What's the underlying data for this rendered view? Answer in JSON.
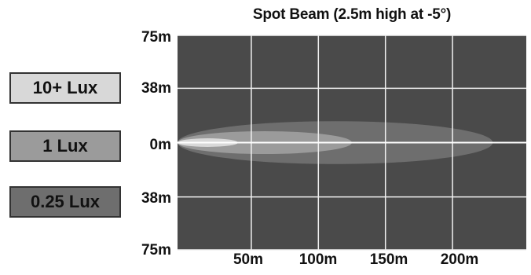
{
  "chart_data": {
    "type": "heatmap",
    "title": "Spot Beam (2.5m high at -5°)",
    "x_ticks": [
      "50m",
      "100m",
      "150m",
      "200m"
    ],
    "x_tick_values": [
      50,
      100,
      150,
      200
    ],
    "y_ticks": [
      "75m",
      "38m",
      "0m",
      "38m",
      "75m"
    ],
    "y_tick_values": [
      75,
      38,
      0,
      -38,
      -75
    ],
    "xlim": [
      -5,
      255
    ],
    "ylim": [
      -75,
      75
    ],
    "grid": true,
    "legend_placement": "left",
    "legend": [
      {
        "label": "10+ Lux",
        "color": "#d8d8d8"
      },
      {
        "label": "1 Lux",
        "color": "#9b9b9b"
      },
      {
        "label": "0.25 Lux",
        "color": "#6e6e6e"
      }
    ],
    "isolux_zones": [
      {
        "label": "0.25 Lux",
        "x_range": [
          -5,
          230
        ],
        "y_half_width": 15
      },
      {
        "label": "1 Lux",
        "x_range": [
          -5,
          125
        ],
        "y_half_width": 8
      },
      {
        "label": "10+ Lux",
        "x_range": [
          -5,
          40
        ],
        "y_half_width": 3
      }
    ],
    "colors": {
      "background": "#4a4a4a",
      "grid": "#f0f0f0",
      "center_line": "#ffffff"
    }
  }
}
